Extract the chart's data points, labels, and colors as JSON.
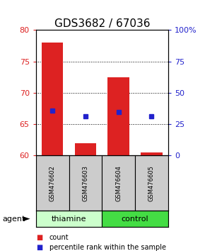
{
  "title": "GDS3682 / 67036",
  "categories": [
    "GSM476602",
    "GSM476603",
    "GSM476604",
    "GSM476605"
  ],
  "bar_values": [
    78.0,
    62.0,
    72.5,
    60.5
  ],
  "bar_base": 60.0,
  "blue_marker_values": [
    67.2,
    66.3,
    67.0,
    66.3
  ],
  "bar_color": "#dd2222",
  "blue_color": "#2222cc",
  "ylim_left": [
    60,
    80
  ],
  "ylim_right": [
    0,
    100
  ],
  "yticks_left": [
    60,
    65,
    70,
    75,
    80
  ],
  "yticks_right": [
    0,
    25,
    50,
    75,
    100
  ],
  "grid_lines": [
    65,
    70,
    75
  ],
  "thiamine_color": "#ccffcc",
  "control_color": "#44dd44",
  "agent_label": "agent",
  "legend_items": [
    {
      "label": "count",
      "color": "#dd2222"
    },
    {
      "label": "percentile rank within the sample",
      "color": "#2222cc"
    }
  ],
  "bar_width": 0.65,
  "sample_box_facecolor": "#cccccc",
  "title_fontsize": 11,
  "tick_fontsize": 8,
  "legend_fontsize": 7
}
